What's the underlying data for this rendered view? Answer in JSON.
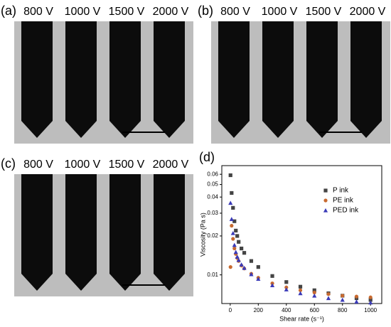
{
  "panels": [
    {
      "label": "(a)",
      "voltages": [
        "800 V",
        "1000 V",
        "1500 V",
        "2000 V"
      ]
    },
    {
      "label": "(b)",
      "voltages": [
        "800 V",
        "1000 V",
        "1500 V",
        "2000 V"
      ]
    },
    {
      "label": "(c)",
      "voltages": [
        "800 V",
        "1000 V",
        "1500 V",
        "2000 V"
      ]
    }
  ],
  "chart_data": {
    "type": "scatter",
    "panel_label": "(d)",
    "xlabel": "Shear rate (s⁻¹)",
    "ylabel": "Viscosity (Pa s)",
    "x": [
      2,
      10,
      20,
      30,
      40,
      50,
      60,
      80,
      100,
      150,
      200,
      300,
      400,
      500,
      600,
      700,
      800,
      900,
      1000
    ],
    "series": [
      {
        "name": "P ink",
        "color": "#444444",
        "marker": "square",
        "values": [
          0.059,
          0.043,
          0.033,
          0.026,
          0.022,
          0.02,
          0.018,
          0.016,
          0.0148,
          0.0128,
          0.0115,
          0.0098,
          0.0088,
          0.0081,
          0.0076,
          0.0072,
          0.0069,
          0.0066,
          0.0064
        ]
      },
      {
        "name": "PE ink",
        "color": "#c86a30",
        "marker": "circle",
        "values": [
          0.0115,
          0.024,
          0.019,
          0.016,
          0.0145,
          0.0135,
          0.0128,
          0.0118,
          0.0112,
          0.0102,
          0.0095,
          0.0086,
          0.008,
          0.0076,
          0.0073,
          0.0071,
          0.0069,
          0.0068,
          0.0067
        ]
      },
      {
        "name": "PED ink",
        "color": "#3a3ab8",
        "marker": "triangle",
        "values": [
          0.036,
          0.027,
          0.021,
          0.017,
          0.015,
          0.0138,
          0.013,
          0.012,
          0.0113,
          0.0101,
          0.0093,
          0.0083,
          0.0077,
          0.0072,
          0.0069,
          0.0066,
          0.0064,
          0.0062,
          0.0061
        ]
      }
    ],
    "xlim": [
      -60,
      1080
    ],
    "xticks": [
      0,
      200,
      400,
      600,
      800,
      1000
    ],
    "ylim": [
      0.006,
      0.07
    ],
    "yticks": [
      0.01,
      0.02,
      0.03,
      0.04,
      0.05,
      0.06
    ],
    "log_y": true,
    "legend": "upper right"
  }
}
